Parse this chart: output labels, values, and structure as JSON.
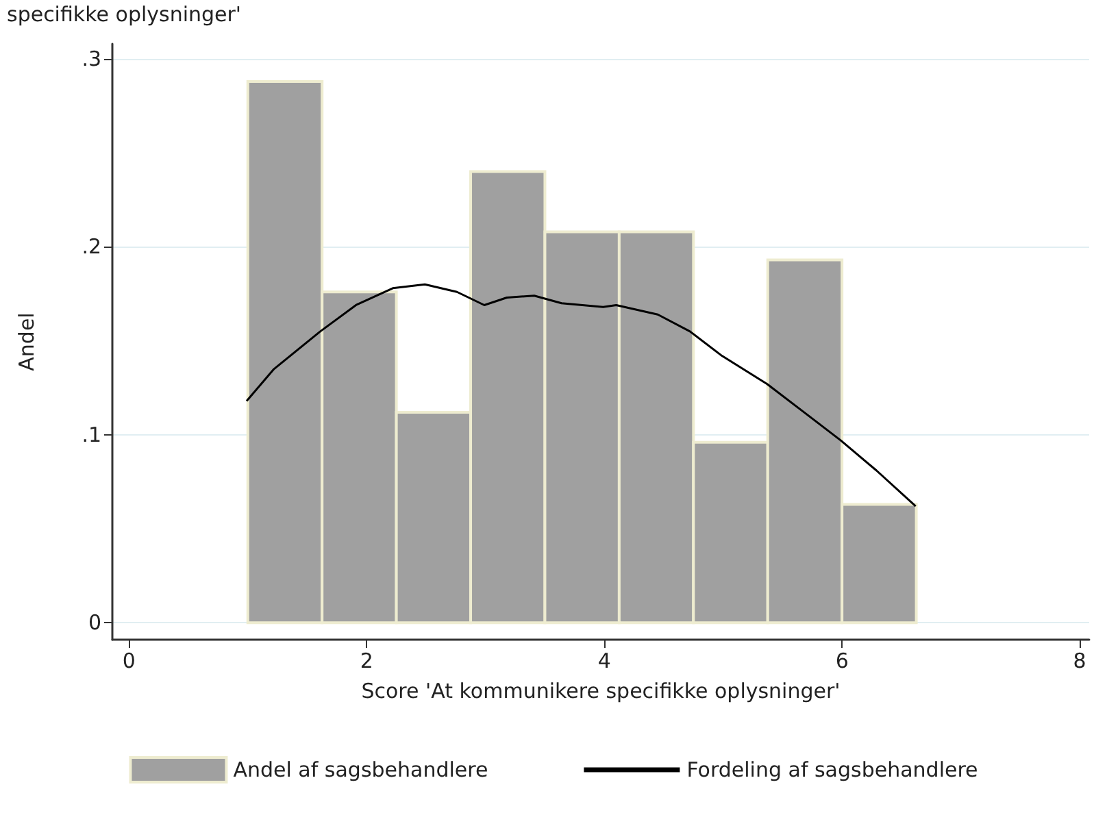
{
  "chart_data": {
    "type": "histogram",
    "title": "specifikke oplysninger'",
    "xlabel": "Score 'At kommunikere specifikke oplysninger'",
    "ylabel": "Andel",
    "xlim": [
      -0.14,
      8.08
    ],
    "xticks": [
      0,
      2,
      4,
      6,
      8
    ],
    "ylim": [
      -0.009,
      0.308
    ],
    "yticks": [
      {
        "value": 0,
        "label": "0"
      },
      {
        "value": 0.1,
        "label": ".1"
      },
      {
        "value": 0.2,
        "label": ".2"
      },
      {
        "value": 0.3,
        "label": ".3"
      }
    ],
    "grid": "y",
    "legend": "bottom",
    "series": [
      {
        "name": "Andel af sagsbehandlere",
        "color": "#a0a0a0",
        "bins": [
          1,
          1.625,
          2.25,
          2.875,
          3.5,
          4.125,
          4.75,
          5.375,
          6,
          6.625
        ],
        "values": [
          0.288,
          0.176,
          0.112,
          0.24,
          0.208,
          0.208,
          0.096,
          0.193,
          0.063
        ]
      },
      {
        "type": "line",
        "name": "Fordeling af sagsbehandlere",
        "color": "#000000",
        "x": [
          0.99,
          1.22,
          1.61,
          1.91,
          2.22,
          2.49,
          2.76,
          2.99,
          3.18,
          3.41,
          3.64,
          3.99,
          4.1,
          4.45,
          4.72,
          4.99,
          5.37,
          5.68,
          5.99,
          6.29,
          6.62
        ],
        "values": [
          0.118,
          0.135,
          0.155,
          0.169,
          0.178,
          0.18,
          0.176,
          0.169,
          0.173,
          0.174,
          0.17,
          0.168,
          0.169,
          0.164,
          0.155,
          0.142,
          0.127,
          0.112,
          0.097,
          0.081,
          0.062
        ]
      }
    ]
  }
}
